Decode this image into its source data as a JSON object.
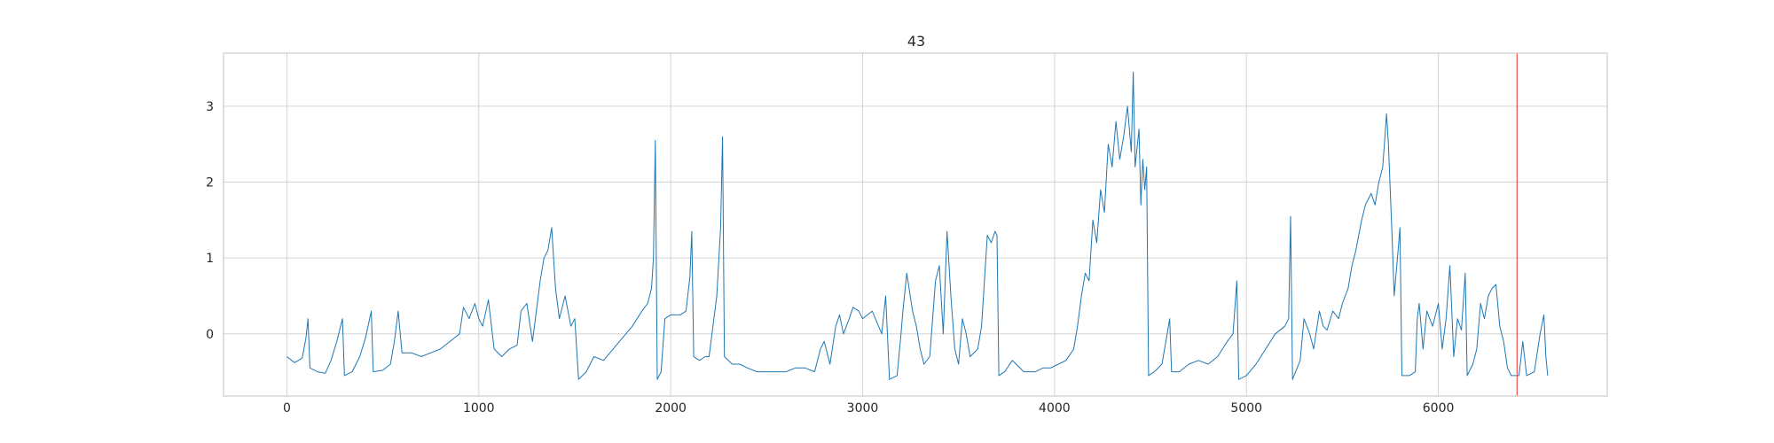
{
  "chart_data": {
    "type": "line",
    "title": "43",
    "xlabel": "",
    "ylabel": "",
    "xlim": [
      -330,
      6880
    ],
    "ylim": [
      -0.82,
      3.7
    ],
    "xticks": [
      0,
      1000,
      2000,
      3000,
      4000,
      5000,
      6000
    ],
    "xtick_labels": [
      "0",
      "1000",
      "2000",
      "3000",
      "4000",
      "5000",
      "6000"
    ],
    "yticks": [
      0,
      1,
      2,
      3
    ],
    "ytick_labels": [
      "0",
      "1",
      "2",
      "3"
    ],
    "grid": true,
    "legend": "none",
    "series": [
      {
        "color": "#1f77b4",
        "points": [
          [
            0,
            -0.3
          ],
          [
            40,
            -0.38
          ],
          [
            80,
            -0.32
          ],
          [
            100,
            -0.05
          ],
          [
            110,
            0.2
          ],
          [
            120,
            -0.45
          ],
          [
            160,
            -0.5
          ],
          [
            200,
            -0.52
          ],
          [
            230,
            -0.35
          ],
          [
            260,
            -0.1
          ],
          [
            290,
            0.2
          ],
          [
            300,
            -0.55
          ],
          [
            340,
            -0.5
          ],
          [
            380,
            -0.3
          ],
          [
            410,
            -0.05
          ],
          [
            440,
            0.3
          ],
          [
            450,
            -0.5
          ],
          [
            500,
            -0.48
          ],
          [
            540,
            -0.4
          ],
          [
            560,
            -0.1
          ],
          [
            580,
            0.3
          ],
          [
            600,
            -0.25
          ],
          [
            650,
            -0.25
          ],
          [
            700,
            -0.3
          ],
          [
            750,
            -0.25
          ],
          [
            800,
            -0.2
          ],
          [
            850,
            -0.1
          ],
          [
            900,
            0.0
          ],
          [
            920,
            0.35
          ],
          [
            950,
            0.2
          ],
          [
            980,
            0.4
          ],
          [
            1000,
            0.2
          ],
          [
            1020,
            0.1
          ],
          [
            1050,
            0.45
          ],
          [
            1080,
            -0.2
          ],
          [
            1120,
            -0.3
          ],
          [
            1160,
            -0.2
          ],
          [
            1200,
            -0.15
          ],
          [
            1220,
            0.3
          ],
          [
            1250,
            0.4
          ],
          [
            1280,
            -0.1
          ],
          [
            1300,
            0.3
          ],
          [
            1320,
            0.7
          ],
          [
            1340,
            1.0
          ],
          [
            1360,
            1.1
          ],
          [
            1380,
            1.4
          ],
          [
            1390,
            1.0
          ],
          [
            1400,
            0.6
          ],
          [
            1420,
            0.2
          ],
          [
            1450,
            0.5
          ],
          [
            1480,
            0.1
          ],
          [
            1500,
            0.2
          ],
          [
            1520,
            -0.6
          ],
          [
            1560,
            -0.5
          ],
          [
            1600,
            -0.3
          ],
          [
            1650,
            -0.35
          ],
          [
            1700,
            -0.2
          ],
          [
            1750,
            -0.05
          ],
          [
            1800,
            0.1
          ],
          [
            1850,
            0.3
          ],
          [
            1880,
            0.4
          ],
          [
            1900,
            0.6
          ],
          [
            1910,
            1.0
          ],
          [
            1920,
            2.55
          ],
          [
            1930,
            -0.6
          ],
          [
            1950,
            -0.5
          ],
          [
            1970,
            0.2
          ],
          [
            2000,
            0.25
          ],
          [
            2050,
            0.25
          ],
          [
            2080,
            0.3
          ],
          [
            2100,
            0.75
          ],
          [
            2110,
            1.35
          ],
          [
            2120,
            -0.3
          ],
          [
            2150,
            -0.35
          ],
          [
            2180,
            -0.3
          ],
          [
            2200,
            -0.3
          ],
          [
            2240,
            0.5
          ],
          [
            2260,
            1.4
          ],
          [
            2270,
            2.6
          ],
          [
            2280,
            -0.3
          ],
          [
            2320,
            -0.4
          ],
          [
            2360,
            -0.4
          ],
          [
            2400,
            -0.45
          ],
          [
            2450,
            -0.5
          ],
          [
            2500,
            -0.5
          ],
          [
            2550,
            -0.5
          ],
          [
            2600,
            -0.5
          ],
          [
            2650,
            -0.45
          ],
          [
            2700,
            -0.45
          ],
          [
            2750,
            -0.5
          ],
          [
            2780,
            -0.2
          ],
          [
            2800,
            -0.1
          ],
          [
            2830,
            -0.4
          ],
          [
            2860,
            0.1
          ],
          [
            2880,
            0.25
          ],
          [
            2900,
            0.0
          ],
          [
            2930,
            0.2
          ],
          [
            2950,
            0.35
          ],
          [
            2980,
            0.3
          ],
          [
            3000,
            0.2
          ],
          [
            3050,
            0.3
          ],
          [
            3100,
            0.0
          ],
          [
            3120,
            0.5
          ],
          [
            3140,
            -0.6
          ],
          [
            3180,
            -0.55
          ],
          [
            3200,
            0.0
          ],
          [
            3210,
            0.3
          ],
          [
            3230,
            0.8
          ],
          [
            3260,
            0.3
          ],
          [
            3280,
            0.1
          ],
          [
            3300,
            -0.2
          ],
          [
            3320,
            -0.4
          ],
          [
            3350,
            -0.3
          ],
          [
            3380,
            0.7
          ],
          [
            3400,
            0.9
          ],
          [
            3420,
            0.0
          ],
          [
            3440,
            1.35
          ],
          [
            3460,
            0.5
          ],
          [
            3480,
            -0.2
          ],
          [
            3500,
            -0.4
          ],
          [
            3520,
            0.2
          ],
          [
            3540,
            0.0
          ],
          [
            3560,
            -0.3
          ],
          [
            3600,
            -0.2
          ],
          [
            3620,
            0.1
          ],
          [
            3650,
            1.3
          ],
          [
            3670,
            1.2
          ],
          [
            3690,
            1.35
          ],
          [
            3700,
            1.3
          ],
          [
            3710,
            -0.55
          ],
          [
            3740,
            -0.5
          ],
          [
            3780,
            -0.35
          ],
          [
            3800,
            -0.4
          ],
          [
            3840,
            -0.5
          ],
          [
            3870,
            -0.5
          ],
          [
            3900,
            -0.5
          ],
          [
            3940,
            -0.45
          ],
          [
            3980,
            -0.45
          ],
          [
            4020,
            -0.4
          ],
          [
            4060,
            -0.35
          ],
          [
            4100,
            -0.2
          ],
          [
            4120,
            0.1
          ],
          [
            4140,
            0.5
          ],
          [
            4160,
            0.8
          ],
          [
            4180,
            0.7
          ],
          [
            4200,
            1.5
          ],
          [
            4220,
            1.2
          ],
          [
            4240,
            1.9
          ],
          [
            4260,
            1.6
          ],
          [
            4280,
            2.5
          ],
          [
            4300,
            2.2
          ],
          [
            4320,
            2.8
          ],
          [
            4340,
            2.3
          ],
          [
            4360,
            2.6
          ],
          [
            4380,
            3.0
          ],
          [
            4400,
            2.4
          ],
          [
            4410,
            3.45
          ],
          [
            4420,
            2.2
          ],
          [
            4440,
            2.7
          ],
          [
            4450,
            1.7
          ],
          [
            4460,
            2.3
          ],
          [
            4470,
            1.9
          ],
          [
            4480,
            2.2
          ],
          [
            4490,
            -0.55
          ],
          [
            4520,
            -0.5
          ],
          [
            4560,
            -0.4
          ],
          [
            4580,
            -0.1
          ],
          [
            4600,
            0.2
          ],
          [
            4610,
            -0.5
          ],
          [
            4650,
            -0.5
          ],
          [
            4700,
            -0.4
          ],
          [
            4750,
            -0.35
          ],
          [
            4800,
            -0.4
          ],
          [
            4850,
            -0.3
          ],
          [
            4900,
            -0.1
          ],
          [
            4930,
            0.0
          ],
          [
            4950,
            0.7
          ],
          [
            4960,
            -0.6
          ],
          [
            5000,
            -0.55
          ],
          [
            5050,
            -0.4
          ],
          [
            5100,
            -0.2
          ],
          [
            5150,
            0.0
          ],
          [
            5200,
            0.1
          ],
          [
            5220,
            0.2
          ],
          [
            5230,
            1.55
          ],
          [
            5240,
            -0.6
          ],
          [
            5280,
            -0.35
          ],
          [
            5300,
            0.2
          ],
          [
            5330,
            0.0
          ],
          [
            5350,
            -0.2
          ],
          [
            5380,
            0.3
          ],
          [
            5400,
            0.1
          ],
          [
            5420,
            0.05
          ],
          [
            5450,
            0.3
          ],
          [
            5480,
            0.2
          ],
          [
            5500,
            0.4
          ],
          [
            5530,
            0.6
          ],
          [
            5550,
            0.9
          ],
          [
            5570,
            1.1
          ],
          [
            5600,
            1.5
          ],
          [
            5620,
            1.7
          ],
          [
            5650,
            1.85
          ],
          [
            5670,
            1.7
          ],
          [
            5690,
            2.0
          ],
          [
            5710,
            2.2
          ],
          [
            5730,
            2.9
          ],
          [
            5740,
            2.5
          ],
          [
            5760,
            1.2
          ],
          [
            5770,
            0.5
          ],
          [
            5790,
            1.1
          ],
          [
            5800,
            1.4
          ],
          [
            5810,
            -0.55
          ],
          [
            5850,
            -0.55
          ],
          [
            5880,
            -0.5
          ],
          [
            5890,
            0.2
          ],
          [
            5900,
            0.4
          ],
          [
            5920,
            -0.2
          ],
          [
            5940,
            0.3
          ],
          [
            5970,
            0.1
          ],
          [
            6000,
            0.4
          ],
          [
            6020,
            -0.2
          ],
          [
            6040,
            0.2
          ],
          [
            6060,
            0.9
          ],
          [
            6080,
            -0.3
          ],
          [
            6100,
            0.2
          ],
          [
            6120,
            0.05
          ],
          [
            6140,
            0.8
          ],
          [
            6150,
            -0.55
          ],
          [
            6180,
            -0.4
          ],
          [
            6200,
            -0.2
          ],
          [
            6220,
            0.4
          ],
          [
            6240,
            0.2
          ],
          [
            6260,
            0.5
          ],
          [
            6280,
            0.6
          ],
          [
            6300,
            0.65
          ],
          [
            6320,
            0.1
          ],
          [
            6340,
            -0.1
          ],
          [
            6360,
            -0.45
          ],
          [
            6380,
            -0.55
          ],
          [
            6420,
            -0.55
          ],
          [
            6440,
            -0.1
          ],
          [
            6460,
            -0.55
          ],
          [
            6500,
            -0.5
          ],
          [
            6530,
            0.0
          ],
          [
            6550,
            0.25
          ],
          [
            6560,
            -0.3
          ],
          [
            6570,
            -0.55
          ]
        ]
      }
    ],
    "vlines": [
      {
        "x": 6410,
        "color": "#f24b4b"
      }
    ]
  }
}
